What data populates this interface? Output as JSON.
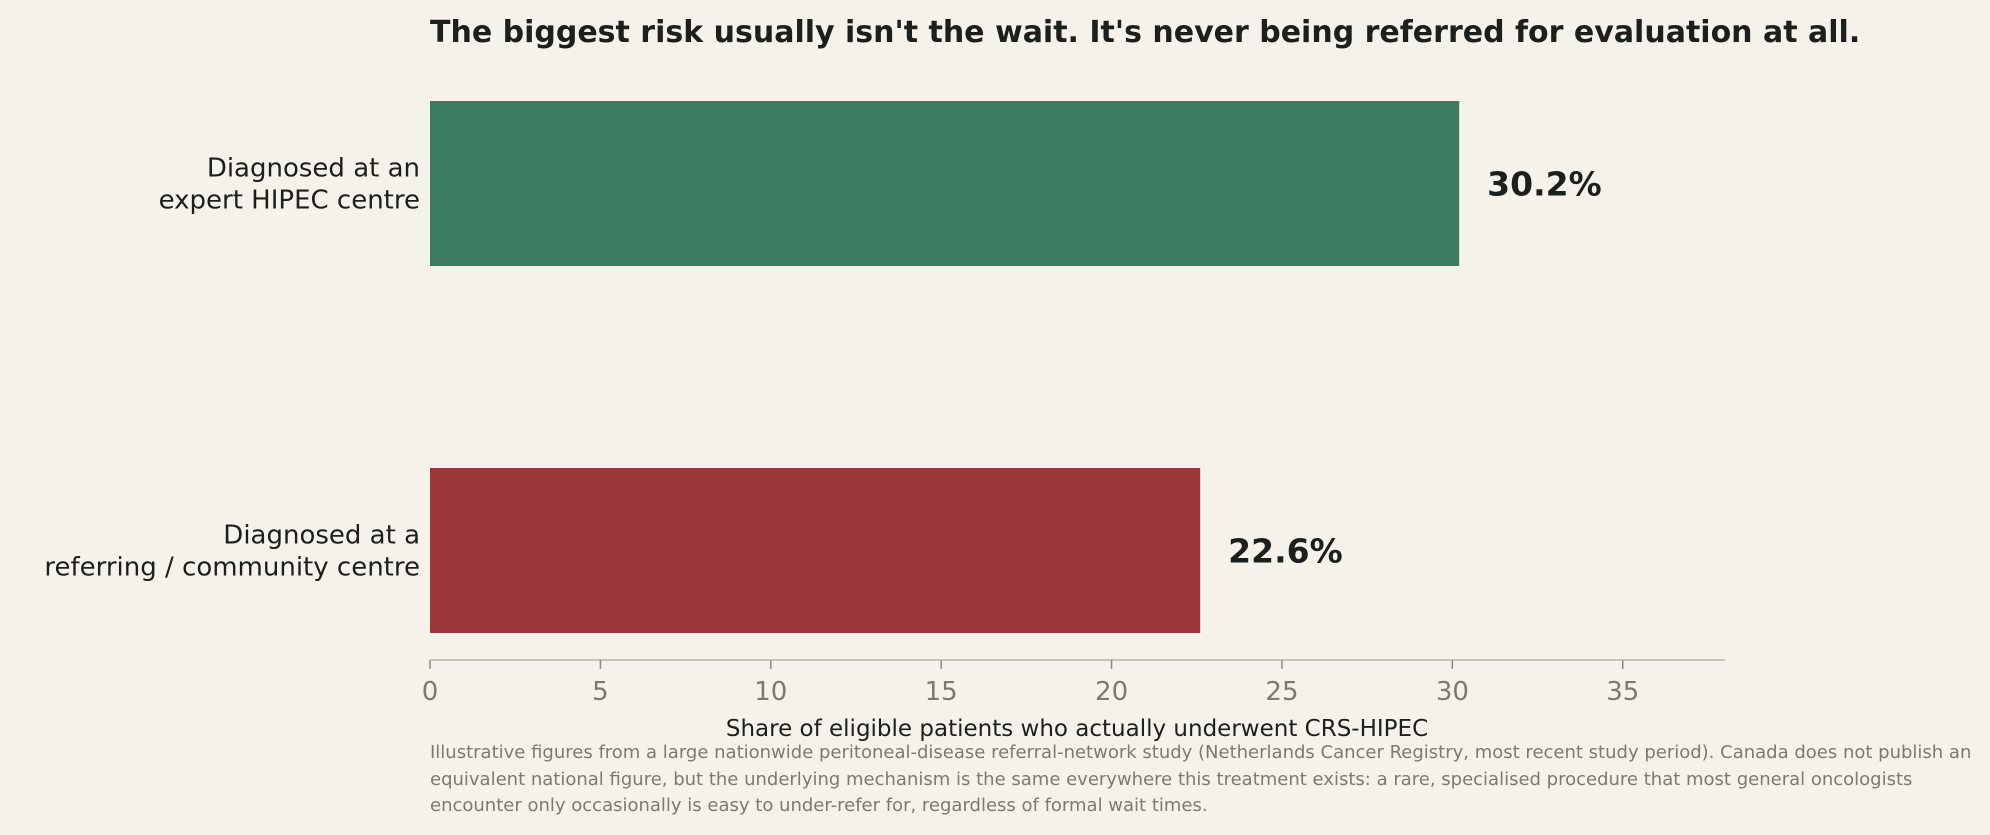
{
  "chart_data": {
    "type": "bar",
    "orientation": "horizontal",
    "title": "The biggest risk usually isn't the wait. It's never being referred for evaluation at all.",
    "xlabel": "Share of eligible patients who actually underwent CRS-HIPEC",
    "ylabel": "",
    "xlim": [
      0,
      38
    ],
    "xticks": [
      0,
      5,
      10,
      15,
      20,
      25,
      30,
      35
    ],
    "grid": false,
    "legend": "none",
    "categories": [
      [
        "Diagnosed at an",
        "expert HIPEC centre"
      ],
      [
        "Diagnosed at a",
        "referring / community centre"
      ]
    ],
    "values": [
      30.2,
      22.6
    ],
    "value_labels": [
      "30.2%",
      "22.6%"
    ],
    "colors": [
      "#3d7b60",
      "#9c3839"
    ]
  },
  "footnote": "Illustrative figures from a large nationwide peritoneal-disease referral-network study (Netherlands Cancer Registry, most recent study period). Canada does not publish an equivalent national figure, but the underlying mechanism is the same everywhere this treatment exists: a rare, specialised procedure that most general oncologists encounter only occasionally is easy to under-refer for, regardless of formal wait times.",
  "colors": {
    "background": "#f5f2ec",
    "axis_line": "#c9c3b3",
    "text": "#1c1f1c",
    "muted_text": "#7a7a72"
  }
}
